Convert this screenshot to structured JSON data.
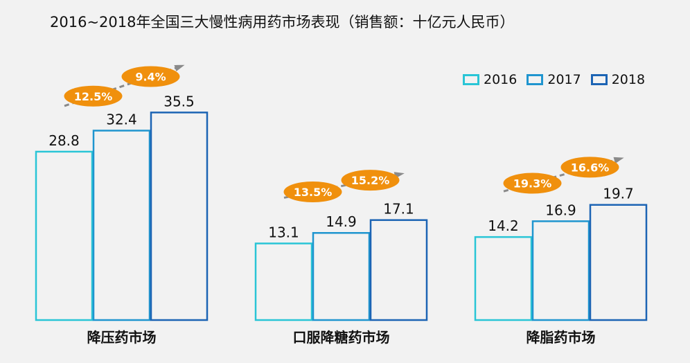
{
  "title": "2016~2018年全国三大慢性病用药市场表现（销售额：十亿元人民币）",
  "legend": [
    {
      "label": "2016",
      "color": "#29c5d6"
    },
    {
      "label": "2017",
      "color": "#1f95cf"
    },
    {
      "label": "2018",
      "color": "#1c64b4"
    }
  ],
  "colors": {
    "growth_badge": "#f0900d",
    "arrow": "#8a8a8a"
  },
  "chart_data": {
    "type": "bar",
    "title": "2016~2018年全国三大慢性病用药市场表现（销售额：十亿元人民币）",
    "categories": [
      "降压药市场",
      "口服降糖药市场",
      "降脂药市场"
    ],
    "series": [
      {
        "name": "2016",
        "values": [
          28.8,
          13.1,
          14.2
        ]
      },
      {
        "name": "2017",
        "values": [
          32.4,
          14.9,
          16.9
        ]
      },
      {
        "name": "2018",
        "values": [
          35.5,
          17.1,
          19.7
        ]
      }
    ],
    "growth_rates": [
      [
        "12.5%",
        "9.4%"
      ],
      [
        "13.5%",
        "15.2%"
      ],
      [
        "19.3%",
        "16.6%"
      ]
    ],
    "ylim": [
      0,
      40
    ],
    "legend_position": "top-right",
    "grid": false
  }
}
